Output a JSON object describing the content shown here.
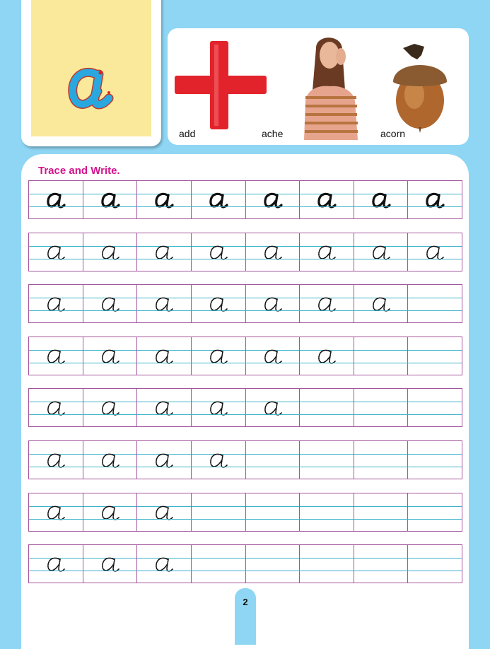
{
  "letter": "a",
  "colors": {
    "background": "#8fd6f4",
    "card": "#fbe99b",
    "title": "#d4148c",
    "grid_border": "#a3559b",
    "grid_line": "#3bb3c8",
    "letter_fill": "#29a8e0"
  },
  "pictures": [
    {
      "word": "add",
      "icon": "plus-sign-icon"
    },
    {
      "word": "ache",
      "icon": "woman-earache-image"
    },
    {
      "word": "acorn",
      "icon": "acorn-image"
    }
  ],
  "exercise": {
    "title": "Trace and Write.",
    "columns": 8,
    "rows": [
      {
        "style": "solid",
        "letters": 8
      },
      {
        "style": "dotted",
        "letters": 8
      },
      {
        "style": "dotted",
        "letters": 7
      },
      {
        "style": "dotted",
        "letters": 6
      },
      {
        "style": "dotted",
        "letters": 5
      },
      {
        "style": "dotted",
        "letters": 4
      },
      {
        "style": "dotted",
        "letters": 3
      },
      {
        "style": "dotted",
        "letters": 3
      }
    ]
  },
  "page_number": "2"
}
